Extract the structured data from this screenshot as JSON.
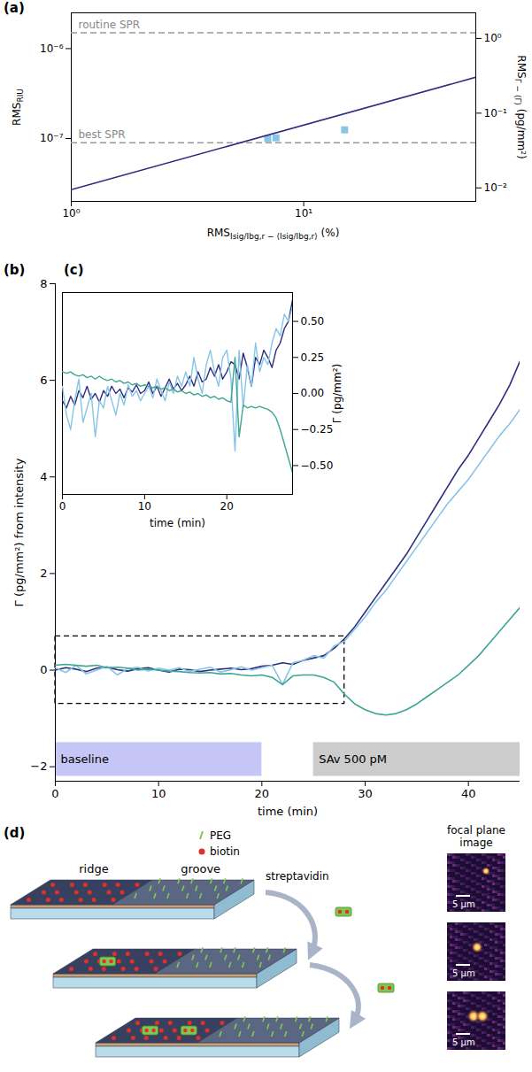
{
  "chart_data": [
    {
      "type": "scatter",
      "panel_label": "(a)",
      "log": true,
      "x_label": {
        "text": "RMS",
        "subscript": "Isig/Ibg,r − ⟨Isig/Ibg,r⟩",
        "suffix": " (%)"
      },
      "y_label": {
        "text": "RMS",
        "subscript": "RIU"
      },
      "y2_label": {
        "text": "RMS",
        "subscript": "Γ − ⟨Γ⟩",
        "suffix": " (pg/mm²)"
      },
      "xlim": [
        1,
        55
      ],
      "xticks": [
        {
          "value": 1,
          "label": "10⁰"
        },
        {
          "value": 10,
          "label": "10¹"
        }
      ],
      "ylim": [
        2e-08,
        2.5e-06
      ],
      "yticks": [
        {
          "value": 1e-07,
          "label": "10⁻⁷"
        },
        {
          "value": 1e-06,
          "label": "10⁻⁶"
        }
      ],
      "y2lim": [
        0.0066,
        2.2
      ],
      "y2ticks": [
        {
          "value": 0.01,
          "label": "10⁻²"
        },
        {
          "value": 0.1,
          "label": "10⁻¹"
        },
        {
          "value": 1,
          "label": "10⁰"
        }
      ],
      "series": [
        {
          "type": "scatter",
          "marker": "square",
          "color": "#87c5e6",
          "x": [
            7.0,
            7.6,
            15.0
          ],
          "values": [
            1e-07,
            1.02e-07,
            1.25e-07
          ]
        },
        {
          "type": "line",
          "line_style": "solid",
          "color": "#2e2d7f",
          "x": [
            1,
            55
          ],
          "values": [
            2.7e-08,
            4.8e-07
          ]
        }
      ],
      "reference_lines": [
        {
          "value": 1.5e-06,
          "label": "routine SPR",
          "color": "#999999",
          "line_style": "dashed"
        },
        {
          "value": 9e-08,
          "label": "best SPR",
          "color": "#999999",
          "line_style": "dashed"
        }
      ]
    },
    {
      "type": "line",
      "panel_label": "(b)",
      "x_label": "time (min)",
      "y_label": "Γ (pg/mm²) from intensity",
      "xlim": [
        0,
        45
      ],
      "xticks": [
        0,
        10,
        20,
        30,
        40
      ],
      "ylim": [
        -2.3,
        8
      ],
      "yticks": [
        {
          "value": -2,
          "label": "−2"
        },
        0,
        2,
        4,
        6,
        8
      ],
      "x": [
        0,
        1,
        2,
        3,
        4,
        5,
        6,
        7,
        8,
        9,
        10,
        11,
        12,
        13,
        14,
        15,
        16,
        17,
        18,
        19,
        20,
        21,
        22,
        23,
        24,
        25,
        26,
        27,
        28,
        29,
        30,
        31,
        32,
        33,
        34,
        35,
        36,
        37,
        38,
        39,
        40,
        41,
        42,
        43,
        44,
        45
      ],
      "series": [
        {
          "color": "#2e2d7f",
          "values": [
            0.0,
            0.05,
            0.02,
            -0.03,
            0.04,
            0.06,
            0.01,
            -0.02,
            0.03,
            0.05,
            0.0,
            -0.04,
            0.02,
            0.01,
            -0.03,
            0.0,
            0.02,
            0.04,
            0.01,
            0.03,
            0.08,
            0.1,
            0.15,
            0.12,
            0.2,
            0.25,
            0.3,
            0.45,
            0.65,
            0.9,
            1.2,
            1.5,
            1.8,
            2.1,
            2.4,
            2.75,
            3.1,
            3.45,
            3.8,
            4.15,
            4.45,
            4.8,
            5.15,
            5.5,
            5.9,
            6.4
          ]
        },
        {
          "color": "#87c5e6",
          "values": [
            0.05,
            -0.05,
            0.1,
            -0.08,
            0.0,
            0.08,
            -0.1,
            0.03,
            0.06,
            -0.02,
            0.04,
            0.0,
            0.05,
            -0.03,
            0.02,
            0.06,
            -0.04,
            0.01,
            0.07,
            0.0,
            0.05,
            0.1,
            -0.3,
            0.15,
            0.2,
            0.3,
            0.25,
            0.5,
            0.6,
            0.85,
            1.1,
            1.4,
            1.65,
            1.95,
            2.25,
            2.55,
            2.85,
            3.15,
            3.45,
            3.7,
            3.95,
            4.25,
            4.55,
            4.85,
            5.1,
            5.4
          ]
        },
        {
          "color": "#3da593",
          "values": [
            0.1,
            0.12,
            0.1,
            0.08,
            0.1,
            0.05,
            0.06,
            0.04,
            0.0,
            0.02,
            0.0,
            -0.02,
            -0.03,
            -0.05,
            -0.06,
            -0.05,
            -0.08,
            -0.07,
            -0.1,
            -0.12,
            -0.1,
            -0.15,
            -0.3,
            -0.12,
            -0.1,
            -0.1,
            -0.15,
            -0.25,
            -0.5,
            -0.7,
            -0.82,
            -0.9,
            -0.93,
            -0.9,
            -0.82,
            -0.7,
            -0.55,
            -0.4,
            -0.25,
            -0.1,
            0.1,
            0.3,
            0.55,
            0.8,
            1.05,
            1.3
          ]
        }
      ],
      "zoom_box": {
        "x": [
          0,
          28
        ],
        "y": [
          -0.7,
          0.7
        ]
      },
      "annotations": [
        {
          "text": "baseline",
          "x": [
            0,
            20
          ],
          "y": [
            -2.2,
            -1.5
          ],
          "color": "#c6c6f6"
        },
        {
          "text": "SAv 500 pM",
          "x": [
            25,
            45
          ],
          "y": [
            -2.2,
            -1.5
          ],
          "color": "#cccccc"
        }
      ]
    },
    {
      "type": "line",
      "panel_label": "(c)",
      "x_label": "time (min)",
      "y_label": "Γ (pg/mm²)",
      "xlim": [
        0,
        28
      ],
      "xticks": [
        0,
        10,
        20
      ],
      "ylim": [
        -0.7,
        0.7
      ],
      "yticks": [
        {
          "value": -0.5,
          "label": "−0.50"
        },
        {
          "value": -0.25,
          "label": "−0.25"
        },
        {
          "value": 0,
          "label": "0.00"
        },
        {
          "value": 0.25,
          "label": "0.25"
        },
        {
          "value": 0.5,
          "label": "0.50"
        }
      ],
      "x": [
        0,
        0.5,
        1,
        1.5,
        2,
        2.5,
        3,
        3.5,
        4,
        4.5,
        5,
        5.5,
        6,
        6.5,
        7,
        7.5,
        8,
        8.5,
        9,
        9.5,
        10,
        10.5,
        11,
        11.5,
        12,
        12.5,
        13,
        13.5,
        14,
        14.5,
        15,
        15.5,
        16,
        16.5,
        17,
        17.5,
        18,
        18.5,
        19,
        19.5,
        20,
        20.5,
        21,
        21.5,
        22,
        22.5,
        23,
        23.5,
        24,
        24.5,
        25,
        25.5,
        26,
        26.5,
        27,
        27.5,
        28
      ],
      "series": [
        {
          "color": "#2e2d7f",
          "values": [
            -0.05,
            -0.1,
            -0.02,
            -0.08,
            0.02,
            -0.03,
            0.05,
            -0.04,
            0.0,
            -0.06,
            0.02,
            -0.02,
            0.05,
            0.0,
            0.03,
            -0.03,
            0.04,
            0.01,
            0.06,
            0.0,
            0.02,
            0.08,
            0.0,
            0.05,
            -0.02,
            0.04,
            0.1,
            0.03,
            0.07,
            0.02,
            0.06,
            0.12,
            0.05,
            0.15,
            0.08,
            0.1,
            0.18,
            0.12,
            0.2,
            0.1,
            0.15,
            0.22,
            0.2,
            0.1,
            0.28,
            0.18,
            0.05,
            0.25,
            0.2,
            0.3,
            0.25,
            0.18,
            0.3,
            0.35,
            0.45,
            0.5,
            0.65
          ]
        },
        {
          "color": "#87c5e6",
          "values": [
            0.05,
            -0.15,
            -0.25,
            -0.05,
            0.1,
            -0.2,
            -0.1,
            0.0,
            -0.3,
            -0.05,
            -0.1,
            0.05,
            -0.05,
            -0.15,
            0.0,
            -0.08,
            0.06,
            -0.02,
            0.02,
            -0.05,
            0.0,
            0.05,
            -0.03,
            0.1,
            0.02,
            -0.05,
            0.08,
            0.0,
            0.12,
            0.05,
            0.15,
            0.05,
            0.25,
            0.1,
            0.0,
            0.2,
            0.3,
            0.15,
            0.05,
            0.25,
            0.3,
            0.1,
            -0.4,
            0.3,
            -0.1,
            0.2,
            0.05,
            0.35,
            0.15,
            0.25,
            0.2,
            0.35,
            0.45,
            0.4,
            0.55,
            0.5,
            0.6
          ]
        },
        {
          "color": "#3da593",
          "values": [
            0.15,
            0.14,
            0.15,
            0.13,
            0.12,
            0.13,
            0.11,
            0.12,
            0.1,
            0.12,
            0.1,
            0.09,
            0.1,
            0.08,
            0.09,
            0.07,
            0.08,
            0.06,
            0.07,
            0.05,
            0.06,
            0.05,
            0.04,
            0.05,
            0.03,
            0.04,
            0.02,
            0.03,
            0.01,
            0.02,
            0.0,
            0.01,
            -0.01,
            0.0,
            -0.02,
            -0.01,
            -0.03,
            -0.02,
            -0.04,
            -0.03,
            -0.05,
            -0.06,
            0.25,
            -0.3,
            -0.08,
            -0.1,
            -0.09,
            -0.1,
            -0.09,
            -0.1,
            -0.11,
            -0.13,
            -0.17,
            -0.25,
            -0.35,
            -0.45,
            -0.55
          ]
        }
      ]
    }
  ],
  "diagram": {
    "panel_label": "(d)",
    "regions": {
      "ridge": "ridge",
      "groove": "groove"
    },
    "legend": [
      {
        "label": "PEG",
        "color": "#7ec850",
        "marker": "line"
      },
      {
        "label": "biotin",
        "color": "#e0302a",
        "marker": "dot"
      }
    ],
    "reagent": {
      "label": "streptavidin",
      "color": "#7ec850"
    },
    "steps": [
      {
        "streptavidin_bound": 0
      },
      {
        "streptavidin_bound": 1
      },
      {
        "streptavidin_bound": 2
      }
    ],
    "images_title": "focal plane image",
    "images": [
      {
        "scale_bar": "5 μm"
      },
      {
        "scale_bar": "5 μm"
      },
      {
        "scale_bar": "5 μm"
      }
    ]
  }
}
